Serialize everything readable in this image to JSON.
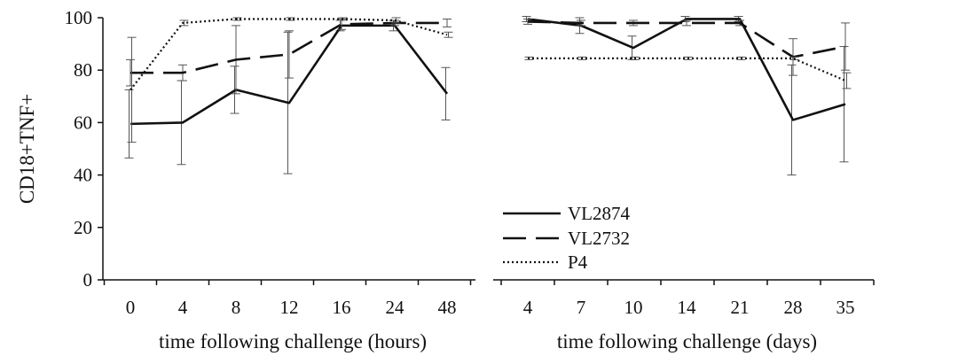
{
  "chart_data": [
    {
      "type": "line",
      "ylabel": "CD18+TNF+",
      "xlabel": "time following challenge (hours)",
      "categories": [
        "0",
        "4",
        "8",
        "12",
        "16",
        "24",
        "48"
      ],
      "ylim": [
        0,
        100
      ],
      "yticks": [
        0,
        20,
        40,
        60,
        80,
        100
      ],
      "series": [
        {
          "name": "VL2874",
          "values": [
            59.5,
            60,
            72.5,
            67.5,
            97,
            97,
            71
          ],
          "err": [
            13,
            16,
            9,
            27,
            2,
            2,
            10
          ]
        },
        {
          "name": "VL2732",
          "values": [
            79,
            79,
            84,
            86,
            97.5,
            98,
            98
          ],
          "err": [
            5,
            3,
            13,
            9,
            2,
            1,
            1.5
          ]
        },
        {
          "name": "P4",
          "values": [
            72.5,
            98,
            99.5,
            99.5,
            99.5,
            99,
            93.5
          ],
          "err": [
            20,
            1,
            0.5,
            0.5,
            0.5,
            1,
            1
          ]
        }
      ]
    },
    {
      "type": "line",
      "xlabel": "time following challenge (days)",
      "categories": [
        "4",
        "7",
        "10",
        "14",
        "21",
        "28",
        "35"
      ],
      "ylim": [
        0,
        100
      ],
      "series": [
        {
          "name": "VL2874",
          "values": [
            99.5,
            97,
            88.5,
            99.5,
            99.5,
            61,
            67
          ],
          "err": [
            1,
            3,
            4.5,
            1,
            1,
            21,
            22
          ]
        },
        {
          "name": "VL2732",
          "values": [
            98.5,
            98,
            98,
            98,
            98,
            85,
            89
          ],
          "err": [
            1,
            1,
            1,
            1,
            1,
            7,
            9
          ]
        },
        {
          "name": "P4",
          "values": [
            84.5,
            84.5,
            84.5,
            84.5,
            84.5,
            84.5,
            76
          ],
          "err": [
            0.5,
            0.5,
            0.5,
            0.5,
            0.5,
            0.5,
            3
          ]
        }
      ]
    }
  ],
  "legend": {
    "entries": [
      "VL2874",
      "VL2732",
      "P4"
    ]
  }
}
